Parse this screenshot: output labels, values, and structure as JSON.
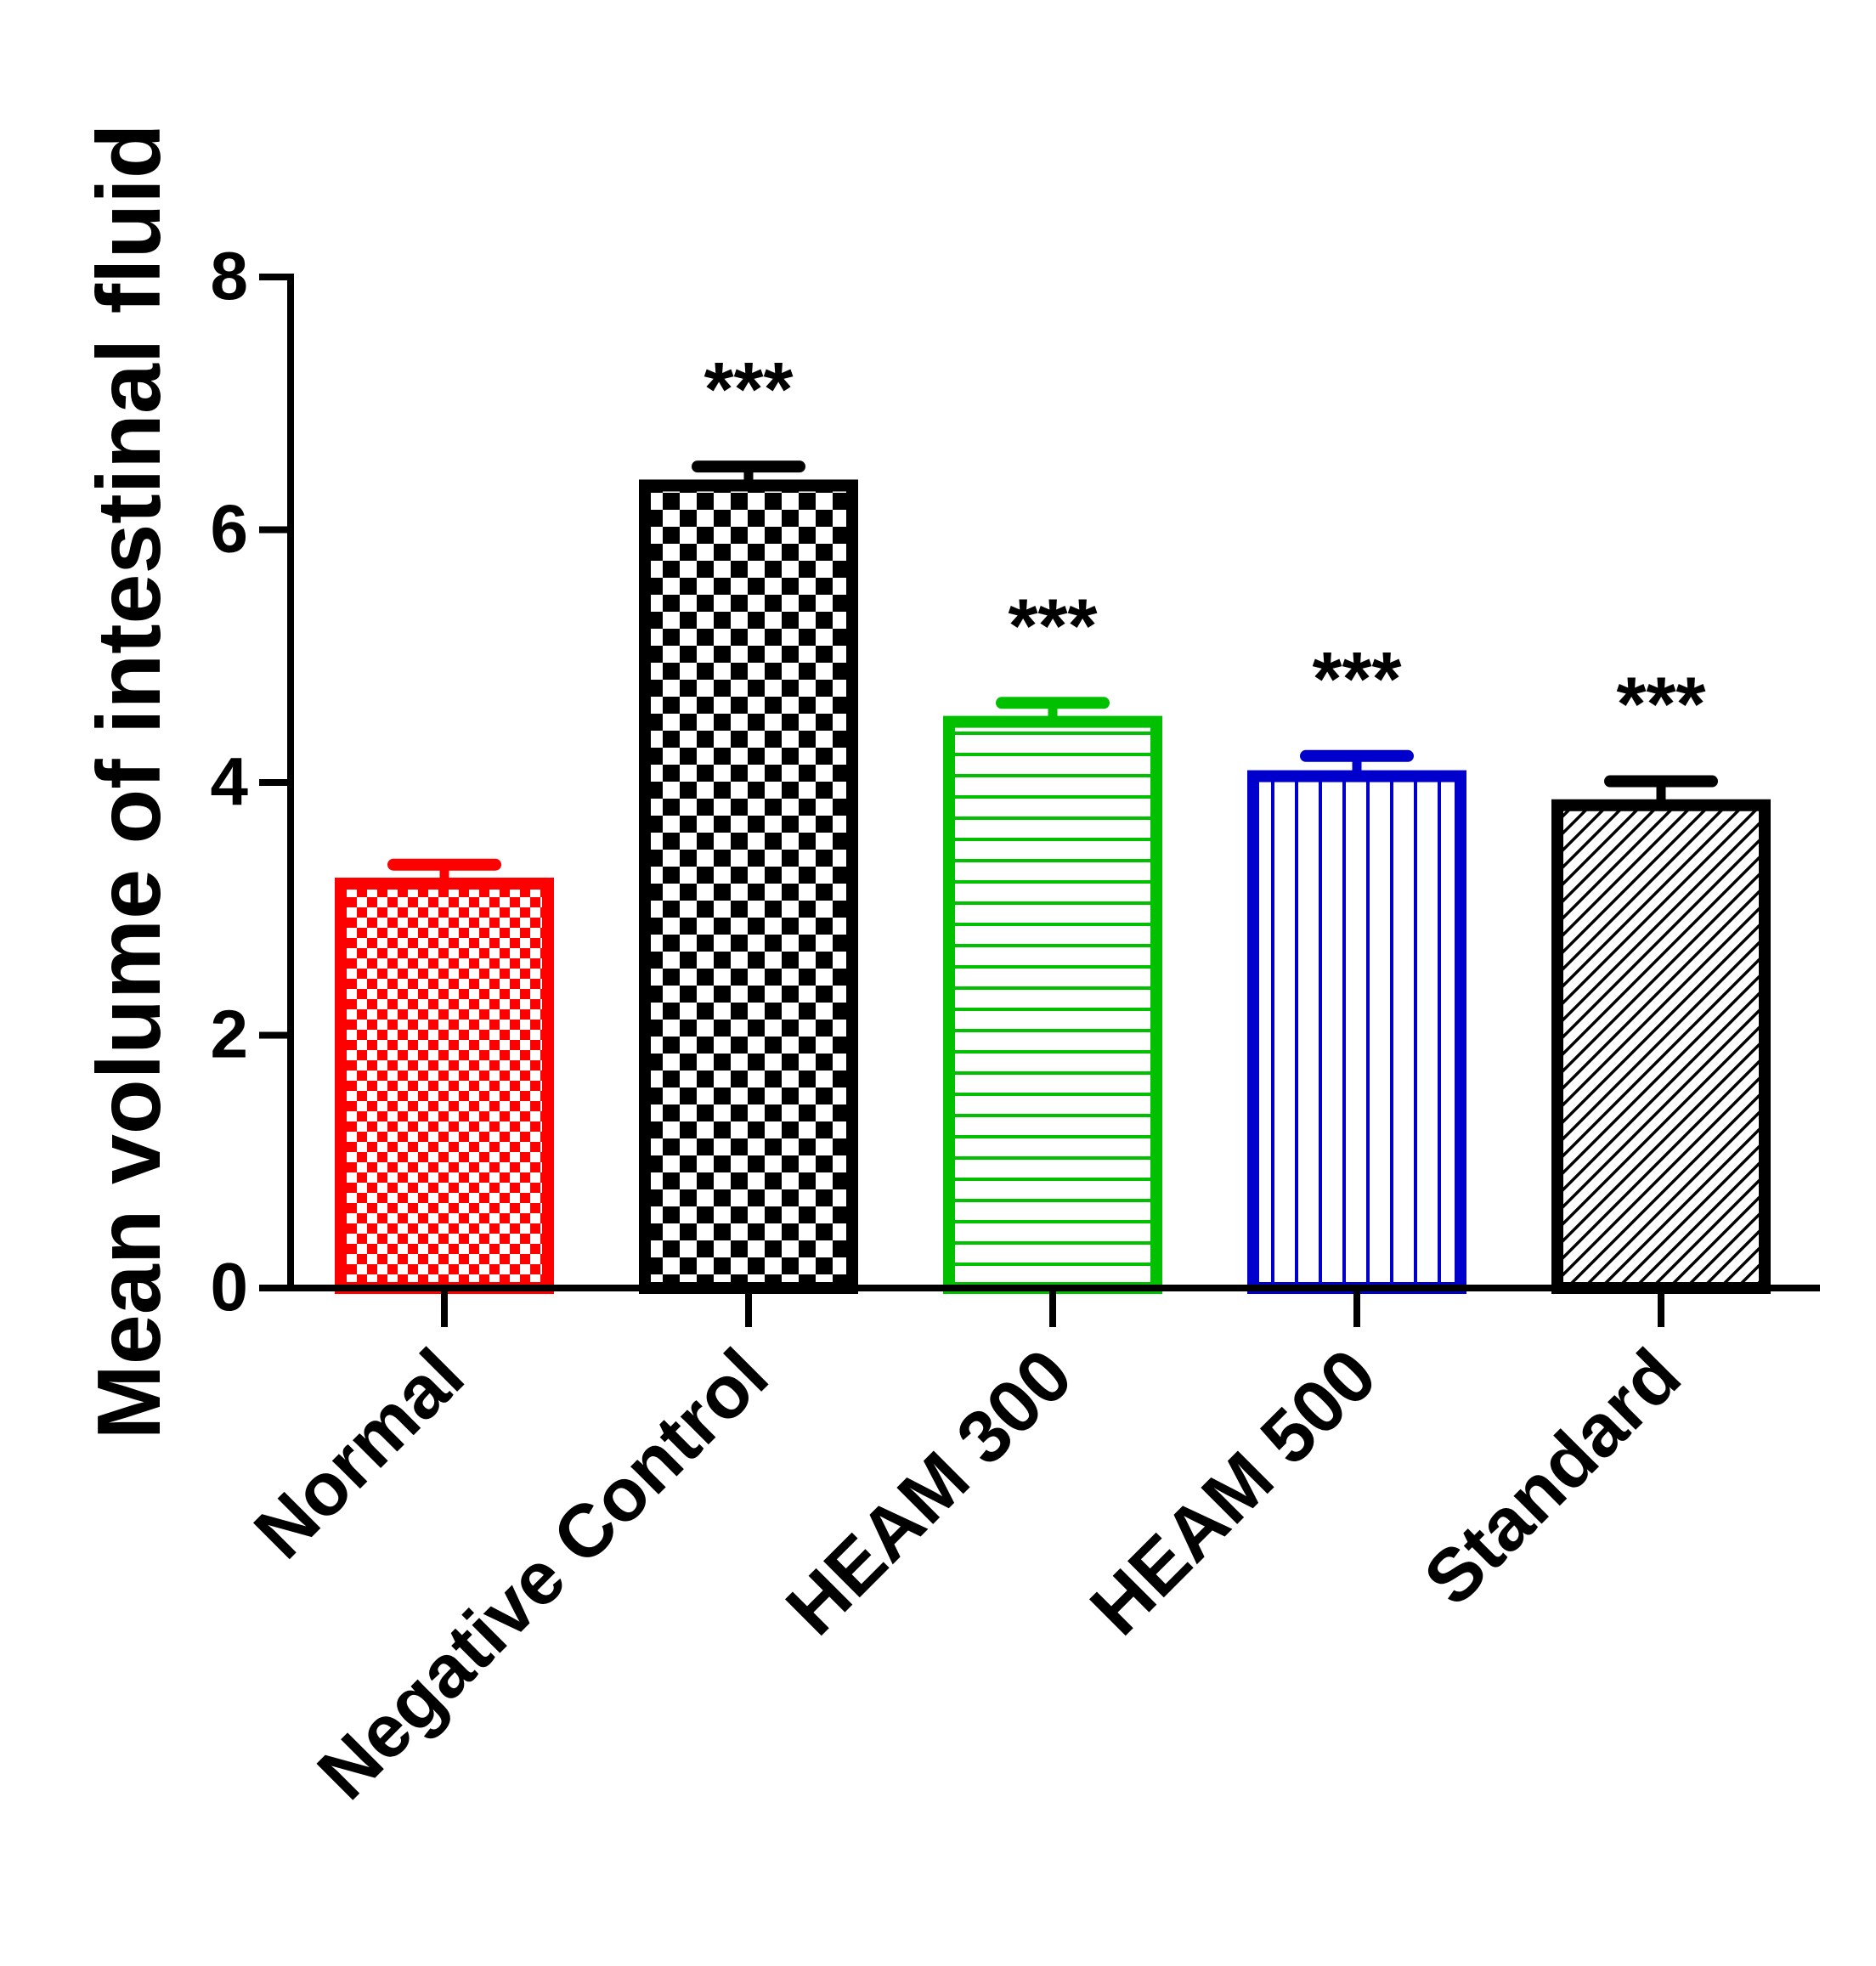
{
  "chart_data": {
    "type": "bar",
    "title": "",
    "xlabel": "",
    "ylabel": "Mean volume of intestinal fluid",
    "ylim": [
      0,
      8
    ],
    "yticks": [
      "0",
      "2",
      "4",
      "6",
      "8"
    ],
    "categories": [
      "Normal",
      "Negative Control",
      "HEAM 300",
      "HEAM 500",
      "Standard"
    ],
    "values": [
      3.2,
      6.35,
      4.48,
      4.05,
      3.82
    ],
    "errors": [
      0.15,
      0.15,
      0.15,
      0.16,
      0.19
    ],
    "annotations": [
      "",
      "***",
      "***",
      "***",
      "***"
    ],
    "colors": [
      "#ff0000",
      "#000000",
      "#00c000",
      "#0000cc",
      "#000000"
    ],
    "patterns": [
      "fine-checker",
      "checker",
      "horizontal-lines",
      "vertical-lines",
      "diagonal-lines"
    ],
    "grid": false,
    "legend": "none"
  }
}
